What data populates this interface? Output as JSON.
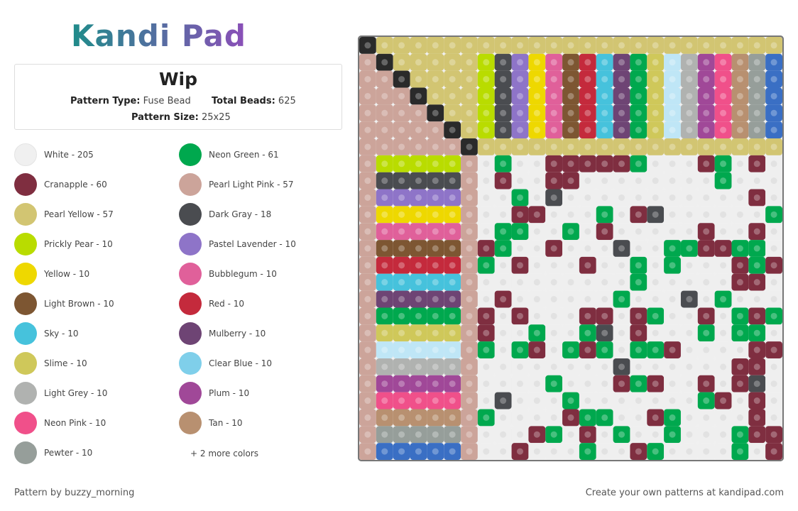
{
  "header": {
    "logo": "Kandi Pad"
  },
  "pattern": {
    "title": "Wip",
    "type_label": "Pattern Type:",
    "type_value": "Fuse Bead",
    "beads_label": "Total Beads:",
    "beads_value": "625",
    "size_label": "Pattern Size:",
    "size_value": "25x25"
  },
  "legend": {
    "items": [
      {
        "label": "White - 205",
        "color": "#f0f0f0"
      },
      {
        "label": "Neon Green - 61",
        "color": "#00a84e"
      },
      {
        "label": "Cranapple - 60",
        "color": "#7f2e40"
      },
      {
        "label": "Pearl Light Pink - 57",
        "color": "#cca49a"
      },
      {
        "label": "Pearl Yellow - 57",
        "color": "#d2c572"
      },
      {
        "label": "Dark Gray - 18",
        "color": "#4a4c50"
      },
      {
        "label": "Prickly Pear - 10",
        "color": "#b9dc00"
      },
      {
        "label": "Pastel Lavender - 10",
        "color": "#8e74c8"
      },
      {
        "label": "Yellow - 10",
        "color": "#eed800"
      },
      {
        "label": "Bubblegum - 10",
        "color": "#e0609a"
      },
      {
        "label": "Light Brown - 10",
        "color": "#7d5632"
      },
      {
        "label": "Red - 10",
        "color": "#c42a3c"
      },
      {
        "label": "Sky - 10",
        "color": "#46c2dc"
      },
      {
        "label": "Mulberry - 10",
        "color": "#6e4474"
      },
      {
        "label": "Slime - 10",
        "color": "#cfc85a"
      },
      {
        "label": "Clear Blue - 10",
        "color": "#7fcfea"
      },
      {
        "label": "Light Grey - 10",
        "color": "#b0b2b0"
      },
      {
        "label": "Plum - 10",
        "color": "#a04898"
      },
      {
        "label": "Neon Pink - 10",
        "color": "#f0508a"
      },
      {
        "label": "Tan - 10",
        "color": "#b89070"
      },
      {
        "label": "Pewter - 10",
        "color": "#969e9a"
      }
    ],
    "more": "+ 2 more colors"
  },
  "footer": {
    "author": "Pattern by buzzy_morning",
    "cta": "Create your own patterns at kandipad.com"
  }
}
